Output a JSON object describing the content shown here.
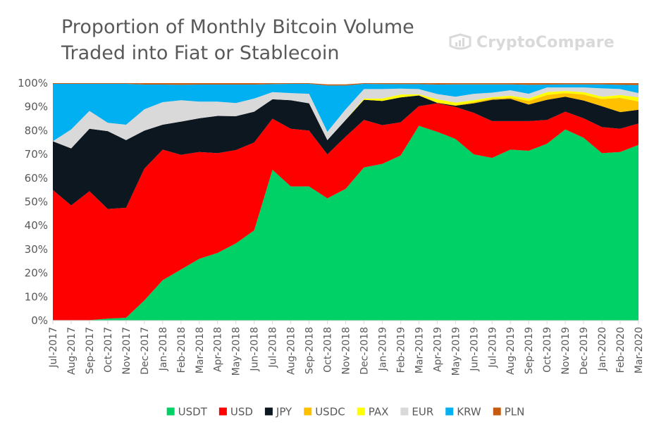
{
  "brand": {
    "name": "CryptoCompare",
    "logo_icon": "cryptocompare-logo-icon",
    "color": "#d9d9d9"
  },
  "chart_data": {
    "type": "area",
    "stacked": true,
    "title": "Proportion of Monthly Bitcoin Volume Traded into Fiat or Stablecoin",
    "title_lines": [
      "Proportion of Monthly Bitcoin Volume",
      "Traded into Fiat or Stablecoin"
    ],
    "xlabel": "",
    "ylabel": "",
    "ylim": [
      0,
      100
    ],
    "y_ticks": [
      "0%",
      "10%",
      "20%",
      "30%",
      "40%",
      "50%",
      "60%",
      "70%",
      "80%",
      "90%",
      "100%"
    ],
    "grid": false,
    "legend_position": "bottom",
    "categories": [
      "Jul-2017",
      "Aug-2017",
      "Sep-2017",
      "Oct-2017",
      "Nov-2017",
      "Dec-2017",
      "Jan-2018",
      "Feb-2018",
      "Mar-2018",
      "Apr-2018",
      "May-2018",
      "Jun-2018",
      "Jul-2018",
      "Aug-2018",
      "Sep-2018",
      "Oct-2018",
      "Nov-2018",
      "Dec-2018",
      "Jan-2019",
      "Feb-2019",
      "Mar-2019",
      "Apr-2019",
      "May-2019",
      "Jun-2019",
      "Jul-2019",
      "Aug-2019",
      "Sep-2019",
      "Oct-2019",
      "Nov-2019",
      "Dec-2019",
      "Jan-2020",
      "Feb-2020",
      "Mar-2020"
    ],
    "series": [
      {
        "name": "USDT",
        "color": "#00d166",
        "values": [
          0.2,
          0.2,
          0.2,
          0.8,
          1.2,
          8.5,
          17.0,
          21.5,
          26.0,
          28.5,
          32.5,
          38.0,
          63.5,
          56.5,
          56.5,
          51.5,
          55.5,
          64.5,
          66.0,
          69.5,
          82.0,
          79.5,
          76.5,
          70.0,
          68.5,
          72.0,
          71.5,
          74.5,
          80.5,
          77.0,
          70.5,
          71.0,
          74.0
        ]
      },
      {
        "name": "USD",
        "color": "#ff0000",
        "values": [
          54.8,
          48.3,
          54.3,
          46.2,
          46.3,
          55.5,
          55.0,
          48.3,
          45.0,
          42.0,
          39.3,
          37.0,
          21.5,
          24.3,
          23.5,
          18.5,
          22.0,
          20.0,
          16.3,
          14.0,
          8.3,
          12.0,
          13.5,
          17.5,
          15.5,
          12.0,
          12.5,
          10.0,
          7.5,
          8.2,
          11.0,
          9.8,
          9.0
        ]
      },
      {
        "name": "JPY",
        "color": "#0d1720",
        "values": [
          20.5,
          24.0,
          26.3,
          32.8,
          28.5,
          16.0,
          10.5,
          14.0,
          14.2,
          15.7,
          14.3,
          13.0,
          8.2,
          12.0,
          11.5,
          6.0,
          7.0,
          8.5,
          10.2,
          10.5,
          4.5,
          0.2,
          0.5,
          4.0,
          9.0,
          9.4,
          7.0,
          8.5,
          6.3,
          7.5,
          8.8,
          7.0,
          5.8
        ]
      },
      {
        "name": "USDC",
        "color": "#ffc000",
        "values": [
          0,
          0,
          0,
          0,
          0,
          0,
          0,
          0,
          0,
          0,
          0,
          0,
          0,
          0,
          0,
          0,
          0,
          0,
          0,
          0,
          0.1,
          0.2,
          0.2,
          0.5,
          0.5,
          0.5,
          1.5,
          2.0,
          1.5,
          2.5,
          3.0,
          6.0,
          3.5
        ]
      },
      {
        "name": "PAX",
        "color": "#ffff00",
        "values": [
          0,
          0,
          0,
          0,
          0,
          0,
          0,
          0,
          0,
          0,
          0,
          0,
          0,
          0,
          0,
          0,
          0,
          0.5,
          1.0,
          1.2,
          0.4,
          1.3,
          1.1,
          0.8,
          0.6,
          0.8,
          1.0,
          1.2,
          0.9,
          1.0,
          1.0,
          1.2,
          1.7
        ]
      },
      {
        "name": "EUR",
        "color": "#d9d9d9",
        "values": [
          0,
          8.0,
          7.5,
          3.5,
          6.5,
          9.0,
          9.5,
          9.0,
          7.0,
          6.0,
          5.5,
          5.5,
          3.0,
          3.0,
          4.0,
          3.5,
          4.5,
          4.0,
          4.0,
          2.5,
          2.2,
          2.2,
          2.5,
          2.7,
          1.9,
          2.3,
          2.0,
          2.0,
          1.5,
          2.0,
          3.5,
          2.5,
          1.8
        ]
      },
      {
        "name": "KRW",
        "color": "#00b0f0",
        "values": [
          24.2,
          19.2,
          11.4,
          16.4,
          17.2,
          10.4,
          7.4,
          6.5,
          7.2,
          7.2,
          7.8,
          5.9,
          3.4,
          3.9,
          4.2,
          19.5,
          10.0,
          2.2,
          2.1,
          1.9,
          2.1,
          4.0,
          5.2,
          4.0,
          3.5,
          2.5,
          3.8,
          1.2,
          1.3,
          1.3,
          1.7,
          1.8,
          3.4
        ]
      },
      {
        "name": "PLN",
        "color": "#c55a11",
        "values": [
          0.3,
          0.3,
          0.3,
          0.3,
          0.3,
          0.6,
          0.6,
          0.7,
          0.6,
          0.6,
          0.6,
          0.6,
          0.4,
          0.3,
          0.3,
          0.5,
          0.5,
          0.3,
          0.4,
          0.4,
          0.4,
          0.6,
          0.5,
          0.5,
          0.5,
          0.5,
          0.7,
          0.6,
          0.5,
          0.5,
          0.5,
          0.7,
          0.8
        ]
      }
    ]
  }
}
